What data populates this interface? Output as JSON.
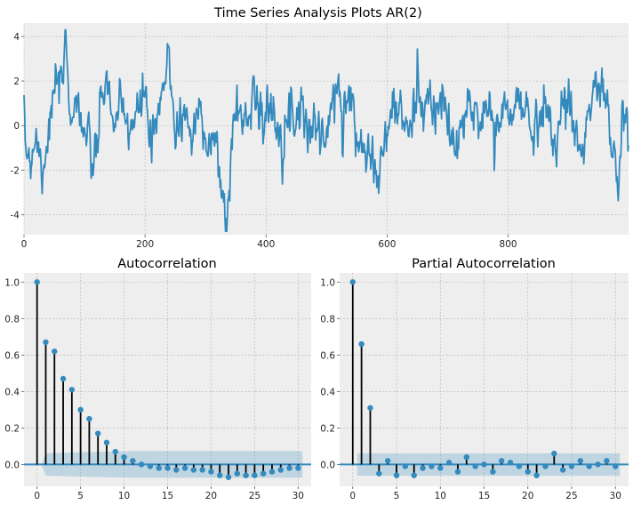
{
  "chart_data": [
    {
      "type": "line",
      "title": "Time Series Analysis Plots AR(2)",
      "xlabel": "",
      "ylabel": "",
      "xlim": [
        0,
        999
      ],
      "ylim": [
        -4.9,
        4.6
      ],
      "xticks": [
        0,
        200,
        400,
        600,
        800
      ],
      "yticks": [
        -4,
        -2,
        0,
        2,
        4
      ],
      "grid": true,
      "color": "#348abd",
      "n_points": 1000,
      "key_points": [
        [
          0,
          -0.5
        ],
        [
          10,
          -1.5
        ],
        [
          20,
          -0.3
        ],
        [
          30,
          -2.0
        ],
        [
          45,
          0.5
        ],
        [
          55,
          2.2
        ],
        [
          62,
          1.0
        ],
        [
          68,
          4.3
        ],
        [
          75,
          0.8
        ],
        [
          90,
          1.0
        ],
        [
          100,
          -0.4
        ],
        [
          115,
          -1.8
        ],
        [
          125,
          0.0
        ],
        [
          135,
          2.5
        ],
        [
          145,
          0.2
        ],
        [
          160,
          0.6
        ],
        [
          175,
          0.0
        ],
        [
          190,
          0.5
        ],
        [
          200,
          1.8
        ],
        [
          210,
          -1.2
        ],
        [
          225,
          0.8
        ],
        [
          240,
          3.2
        ],
        [
          250,
          -0.3
        ],
        [
          265,
          0.6
        ],
        [
          280,
          -0.6
        ],
        [
          290,
          1.0
        ],
        [
          305,
          -0.7
        ],
        [
          318,
          -1.0
        ],
        [
          328,
          -3.0
        ],
        [
          335,
          -4.75
        ],
        [
          345,
          0.0
        ],
        [
          355,
          1.0
        ],
        [
          365,
          -0.2
        ],
        [
          380,
          2.0
        ],
        [
          395,
          0.0
        ],
        [
          410,
          0.8
        ],
        [
          425,
          -0.2
        ],
        [
          445,
          0.5
        ],
        [
          460,
          1.0
        ],
        [
          470,
          -0.3
        ],
        [
          485,
          0.2
        ],
        [
          495,
          -1.0
        ],
        [
          505,
          0.5
        ],
        [
          515,
          1.5
        ],
        [
          525,
          0.8
        ],
        [
          540,
          1.6
        ],
        [
          550,
          -1.0
        ],
        [
          562,
          -0.5
        ],
        [
          572,
          -0.8
        ],
        [
          582,
          -2.6
        ],
        [
          592,
          -1.5
        ],
        [
          605,
          0.5
        ],
        [
          615,
          1.0
        ],
        [
          625,
          0.2
        ],
        [
          640,
          -0.3
        ],
        [
          650,
          2.0
        ],
        [
          660,
          0.9
        ],
        [
          670,
          1.2
        ],
        [
          680,
          0.2
        ],
        [
          690,
          1.5
        ],
        [
          700,
          0.0
        ],
        [
          710,
          -1.0
        ],
        [
          720,
          -0.5
        ],
        [
          735,
          0.9
        ],
        [
          750,
          0.3
        ],
        [
          765,
          1.0
        ],
        [
          780,
          -0.3
        ],
        [
          795,
          0.8
        ],
        [
          805,
          0.3
        ],
        [
          815,
          1.2
        ],
        [
          830,
          0.4
        ],
        [
          845,
          -0.2
        ],
        [
          860,
          1.3
        ],
        [
          870,
          0.0
        ],
        [
          880,
          -1.2
        ],
        [
          890,
          1.0
        ],
        [
          900,
          1.5
        ],
        [
          910,
          -0.2
        ],
        [
          920,
          -1.3
        ],
        [
          930,
          0.4
        ],
        [
          940,
          1.0
        ],
        [
          955,
          2.0
        ],
        [
          965,
          0.5
        ],
        [
          975,
          -1.5
        ],
        [
          982,
          -3.3
        ],
        [
          988,
          0.5
        ],
        [
          999,
          -0.3
        ]
      ],
      "noise_amplitude": 0.8
    },
    {
      "type": "stem",
      "title": "Autocorrelation",
      "xlabel": "",
      "ylabel": "",
      "xlim": [
        -1.5,
        31.5
      ],
      "ylim": [
        -0.12,
        1.05
      ],
      "xticks": [
        0,
        5,
        10,
        15,
        20,
        25,
        30
      ],
      "yticks": [
        0.0,
        0.2,
        0.4,
        0.6,
        0.8,
        1.0
      ],
      "grid": true,
      "color": "#348abd",
      "lags": [
        0,
        1,
        2,
        3,
        4,
        5,
        6,
        7,
        8,
        9,
        10,
        11,
        12,
        13,
        14,
        15,
        16,
        17,
        18,
        19,
        20,
        21,
        22,
        23,
        24,
        25,
        26,
        27,
        28,
        29,
        30
      ],
      "values": [
        1.0,
        0.67,
        0.62,
        0.47,
        0.41,
        0.3,
        0.25,
        0.17,
        0.12,
        0.07,
        0.04,
        0.02,
        0.0,
        -0.01,
        -0.02,
        -0.02,
        -0.03,
        -0.02,
        -0.03,
        -0.03,
        -0.04,
        -0.06,
        -0.07,
        -0.05,
        -0.06,
        -0.06,
        -0.05,
        -0.04,
        -0.03,
        -0.02,
        -0.02
      ],
      "confidence_band": {
        "upper": [
          0.0,
          0.062,
          0.063,
          0.064,
          0.066,
          0.067,
          0.068,
          0.069,
          0.07,
          0.071,
          0.072,
          0.073,
          0.073,
          0.073,
          0.073,
          0.073,
          0.073,
          0.073,
          0.073,
          0.073,
          0.073,
          0.073,
          0.073,
          0.073,
          0.073,
          0.073,
          0.073,
          0.073,
          0.073,
          0.073,
          0.073
        ],
        "lower": [
          0.0,
          -0.062,
          -0.063,
          -0.064,
          -0.066,
          -0.067,
          -0.068,
          -0.069,
          -0.07,
          -0.071,
          -0.072,
          -0.073,
          -0.073,
          -0.073,
          -0.073,
          -0.073,
          -0.073,
          -0.073,
          -0.073,
          -0.073,
          -0.073,
          -0.073,
          -0.073,
          -0.073,
          -0.073,
          -0.073,
          -0.073,
          -0.073,
          -0.073,
          -0.073,
          -0.073
        ]
      }
    },
    {
      "type": "stem",
      "title": "Partial Autocorrelation",
      "xlabel": "",
      "ylabel": "",
      "xlim": [
        -1.5,
        31.5
      ],
      "ylim": [
        -0.12,
        1.05
      ],
      "xticks": [
        0,
        5,
        10,
        15,
        20,
        25,
        30
      ],
      "yticks": [
        0.0,
        0.2,
        0.4,
        0.6,
        0.8,
        1.0
      ],
      "grid": true,
      "color": "#348abd",
      "lags": [
        0,
        1,
        2,
        3,
        4,
        5,
        6,
        7,
        8,
        9,
        10,
        11,
        12,
        13,
        14,
        15,
        16,
        17,
        18,
        19,
        20,
        21,
        22,
        23,
        24,
        25,
        26,
        27,
        28,
        29,
        30
      ],
      "values": [
        1.0,
        0.66,
        0.31,
        -0.05,
        0.02,
        -0.06,
        -0.01,
        -0.06,
        -0.02,
        -0.01,
        -0.02,
        0.01,
        -0.04,
        0.04,
        -0.01,
        0.0,
        -0.04,
        0.02,
        0.01,
        -0.01,
        -0.04,
        -0.06,
        -0.01,
        0.06,
        -0.03,
        -0.01,
        0.02,
        -0.01,
        0.0,
        0.02,
        -0.01
      ],
      "confidence_band": {
        "upper": 0.062,
        "lower": -0.062
      }
    }
  ]
}
